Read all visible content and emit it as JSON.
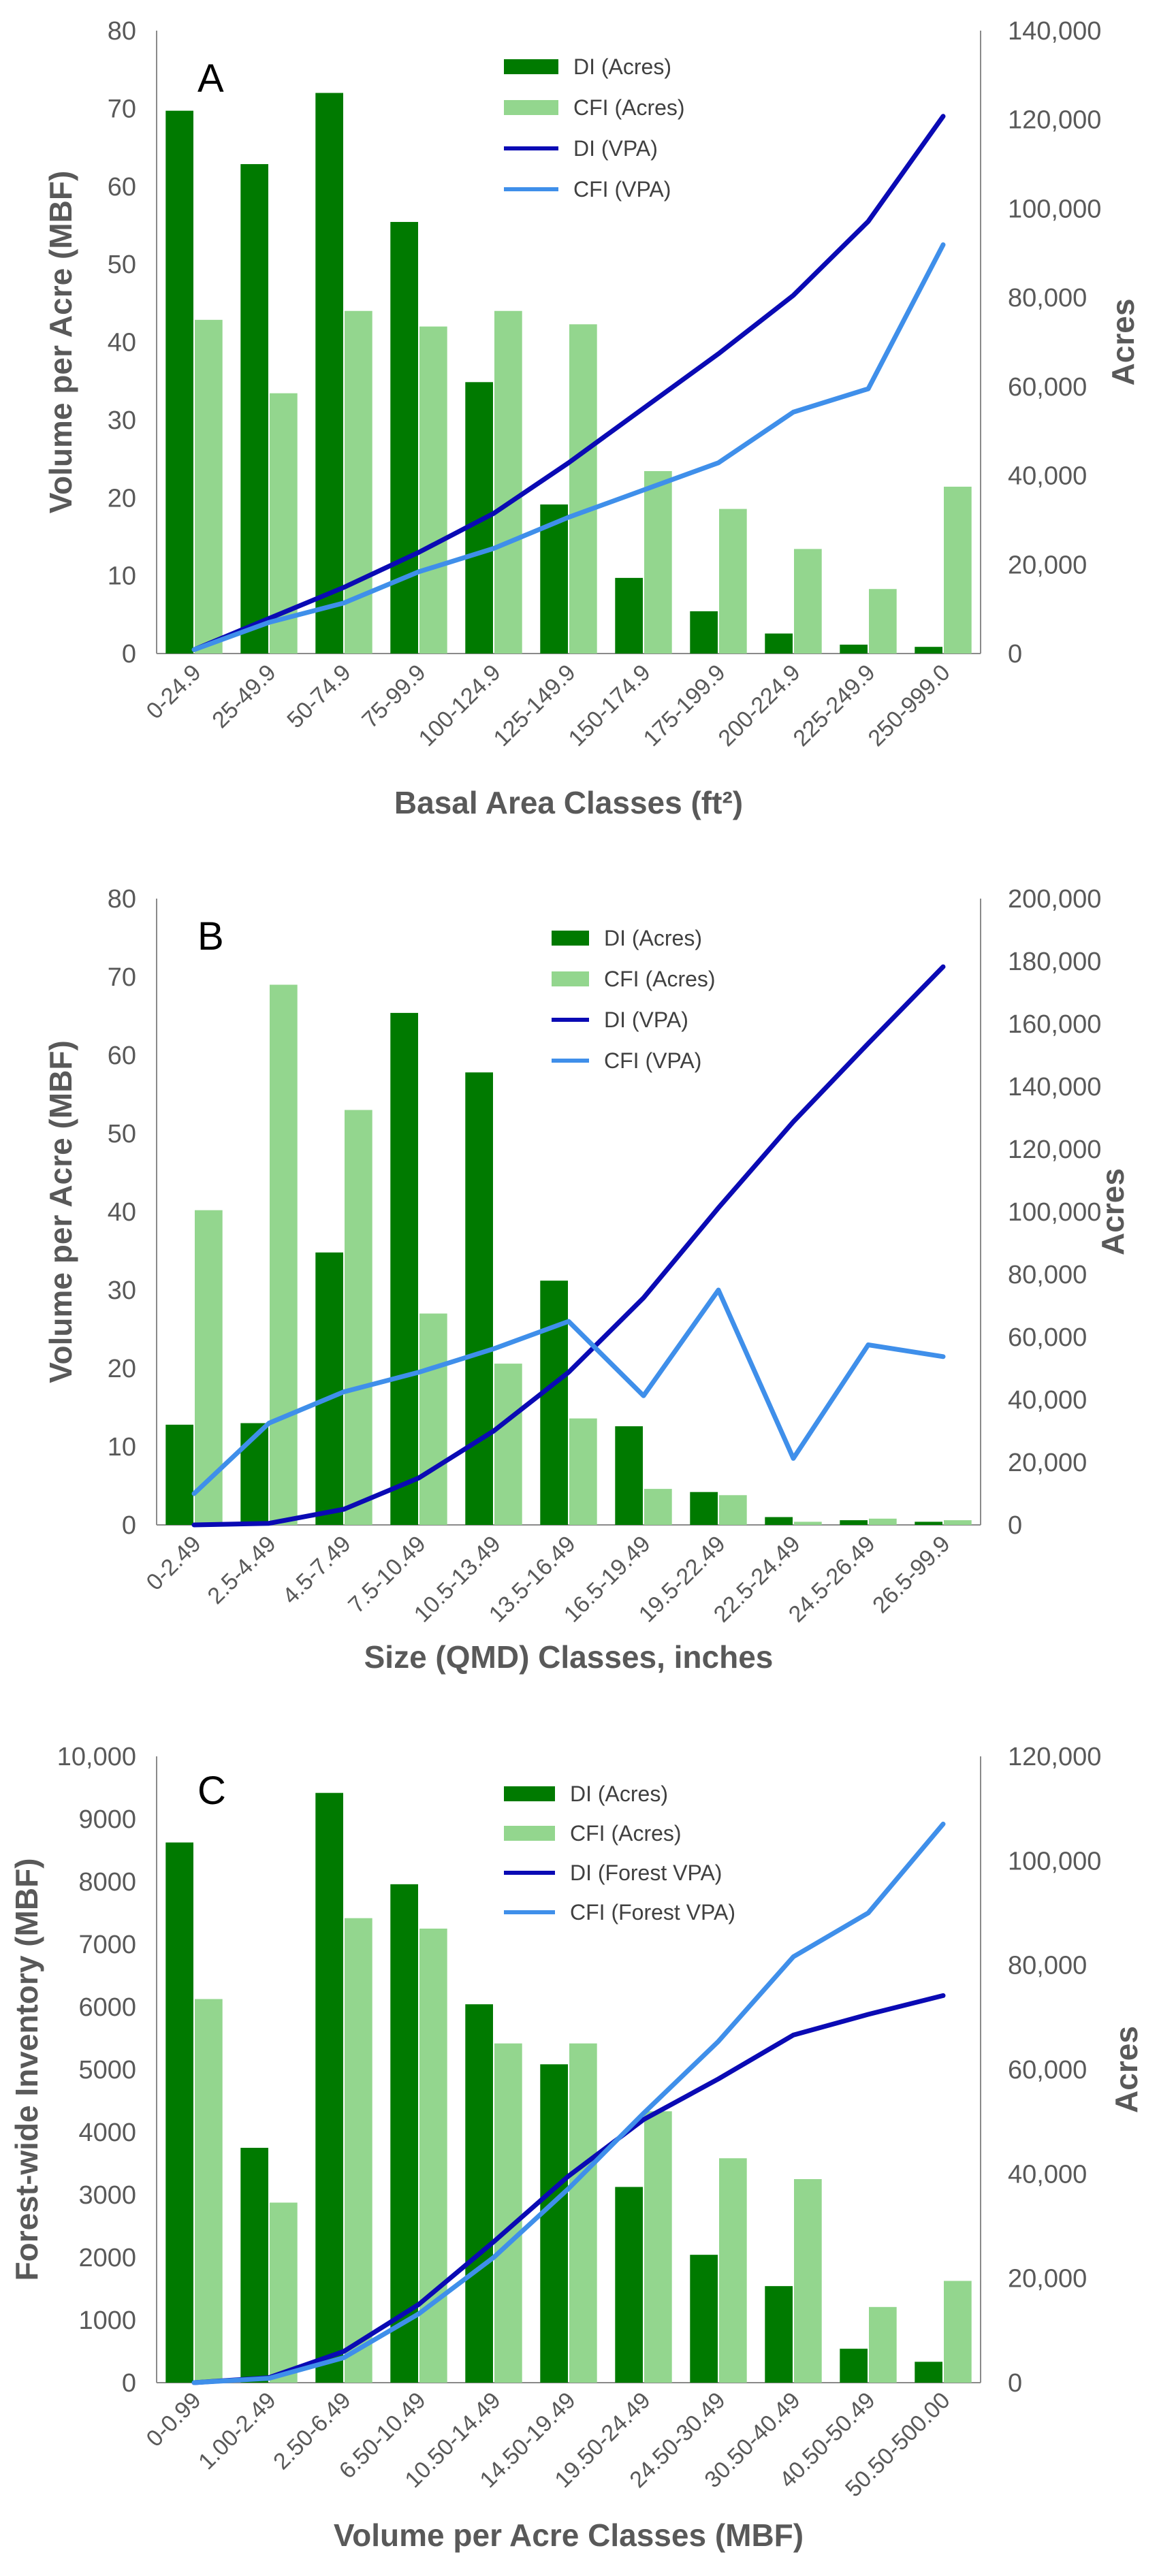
{
  "colors": {
    "di_bar": "#007a00",
    "cfi_bar": "#93d68e",
    "di_line": "#0a0ab4",
    "cfi_line": "#3f8fea",
    "axis": "#8a8a8a"
  },
  "chart_data": [
    {
      "type": "bar",
      "panel_label": "A",
      "xlabel": "Basal Area Classes (ft²)",
      "ylabel": "Volume per Acre (MBF)",
      "y2label": "Acres",
      "categories": [
        "0-24.9",
        "25-49.9",
        "50-74.9",
        "75-99.9",
        "100-124.9",
        "125-149.9",
        "150-174.9",
        "175-199.9",
        "200-224.9",
        "225-249.9",
        "250-999.0"
      ],
      "ylim": [
        0,
        80
      ],
      "yticks": [
        "0",
        "10",
        "20",
        "30",
        "40",
        "50",
        "60",
        "70",
        "80"
      ],
      "y2lim": [
        0,
        140000
      ],
      "y2ticks": [
        "0",
        "20,000",
        "40,000",
        "60,000",
        "80,000",
        "100,000",
        "120,000",
        "140,000"
      ],
      "legend": [
        "DI (Acres)",
        "CFI (Acres)",
        "DI (VPA)",
        "CFI (VPA)"
      ],
      "series": [
        {
          "name": "DI (Acres)",
          "kind": "bar",
          "axis": "right",
          "values": [
            122000,
            110000,
            126000,
            97000,
            61000,
            33500,
            17000,
            9500,
            4500,
            2000,
            1500
          ]
        },
        {
          "name": "CFI (Acres)",
          "kind": "bar",
          "axis": "right",
          "values": [
            75000,
            58500,
            77000,
            73500,
            77000,
            74000,
            41000,
            32500,
            23500,
            14500,
            37500
          ]
        },
        {
          "name": "DI (VPA)",
          "kind": "line",
          "axis": "left",
          "values": [
            0.5,
            4.5,
            8.5,
            13,
            18,
            24.5,
            31.5,
            38.5,
            46,
            55.5,
            69
          ]
        },
        {
          "name": "CFI (VPA)",
          "kind": "line",
          "axis": "left",
          "values": [
            0.5,
            4,
            6.5,
            10.5,
            13.5,
            17.5,
            21,
            24.5,
            31,
            34,
            52.5
          ]
        }
      ]
    },
    {
      "type": "bar",
      "panel_label": "B",
      "xlabel": "Size (QMD)  Classes, inches",
      "ylabel": "Volume per Acre (MBF)",
      "y2label": "Acres",
      "categories": [
        "0-2.49",
        "2.5-4.49",
        "4.5-7.49",
        "7.5-10.49",
        "10.5-13.49",
        "13.5-16.49",
        "16.5-19.49",
        "19.5-22.49",
        "22.5-24.49",
        "24.5-26.49",
        "26.5-99.9"
      ],
      "ylim": [
        0,
        80
      ],
      "yticks": [
        "0",
        "10",
        "20",
        "30",
        "40",
        "50",
        "60",
        "70",
        "80"
      ],
      "y2lim": [
        0,
        200000
      ],
      "y2ticks": [
        "0",
        "20,000",
        "40,000",
        "60,000",
        "80,000",
        "100,000",
        "120,000",
        "140,000",
        "160,000",
        "180,000",
        "200,000"
      ],
      "legend": [
        "DI (Acres)",
        "CFI (Acres)",
        "DI (VPA)",
        "CFI (VPA)"
      ],
      "series": [
        {
          "name": "DI (Acres)",
          "kind": "bar",
          "axis": "right",
          "values": [
            32000,
            32500,
            87000,
            163500,
            144500,
            78000,
            31500,
            10500,
            2500,
            1500,
            1000
          ]
        },
        {
          "name": "CFI (Acres)",
          "kind": "bar",
          "axis": "right",
          "values": [
            100500,
            172500,
            132500,
            67500,
            51500,
            34000,
            11500,
            9500,
            1000,
            2000,
            1500
          ]
        },
        {
          "name": "DI (VPA)",
          "kind": "line",
          "axis": "left",
          "values": [
            0,
            0.2,
            2,
            6,
            12,
            19.5,
            29,
            40.5,
            51.5,
            61.5,
            71.3
          ]
        },
        {
          "name": "CFI (VPA)",
          "kind": "line",
          "axis": "left",
          "values": [
            4,
            13,
            17,
            19.5,
            22.5,
            26,
            16.5,
            30,
            8.5,
            23,
            21.5
          ]
        }
      ]
    },
    {
      "type": "bar",
      "panel_label": "C",
      "xlabel": "Volume per Acre Classes (MBF)",
      "ylabel": "Forest-wide Inventory (MBF)",
      "y2label": "Acres",
      "categories": [
        "0-0.99",
        "1.00-2.49",
        "2.50-6.49",
        "6.50-10.49",
        "10.50-14.49",
        "14.50-19.49",
        "19.50-24.49",
        "24.50-30.49",
        "30.50-40.49",
        "40.50-50.49",
        "50.50-500.00"
      ],
      "ylim": [
        0,
        10000
      ],
      "yticks": [
        "0",
        "1000",
        "2000",
        "3000",
        "4000",
        "5000",
        "6000",
        "7000",
        "8000",
        "9000",
        "10,000"
      ],
      "y2lim": [
        0,
        120000
      ],
      "y2ticks": [
        "0",
        "20,000",
        "40,000",
        "60,000",
        "80,000",
        "100,000",
        "120,000"
      ],
      "legend": [
        "DI (Acres)",
        "CFI (Acres)",
        "DI (Forest VPA)",
        "CFI (Forest VPA)"
      ],
      "series": [
        {
          "name": "DI (Acres)",
          "kind": "bar",
          "axis": "right",
          "values": [
            103500,
            45000,
            113000,
            95500,
            72500,
            61000,
            37500,
            24500,
            18500,
            6500,
            4000
          ]
        },
        {
          "name": "CFI (Acres)",
          "kind": "bar",
          "axis": "right",
          "values": [
            73500,
            34500,
            89000,
            87000,
            65000,
            65000,
            52000,
            43000,
            39000,
            14500,
            19500
          ]
        },
        {
          "name": "DI (Forest VPA)",
          "kind": "line",
          "axis": "left",
          "values": [
            0,
            80,
            500,
            1250,
            2250,
            3300,
            4200,
            4850,
            5550,
            5880,
            6180
          ]
        },
        {
          "name": "CFI (Forest VPA)",
          "kind": "line",
          "axis": "left",
          "values": [
            0,
            70,
            400,
            1100,
            2000,
            3100,
            4300,
            5450,
            6800,
            7500,
            8920
          ]
        }
      ]
    }
  ]
}
